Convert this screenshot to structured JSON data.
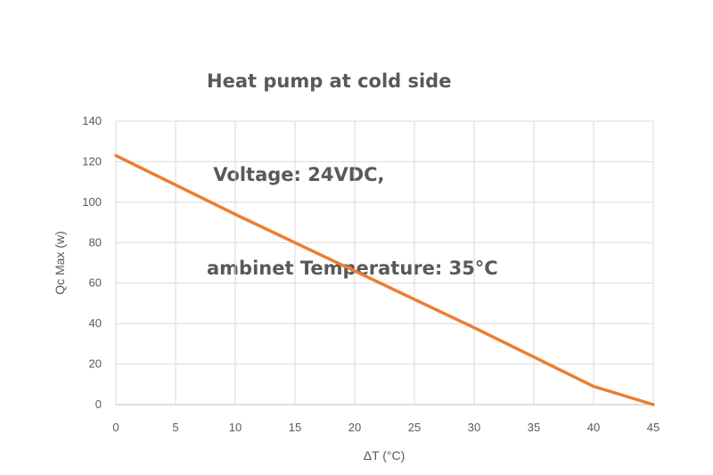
{
  "chart_data": {
    "type": "line",
    "title_lines": [
      "Heat pump at cold side",
      " Voltage: 24VDC,",
      "ambinet Temperature: 35°C"
    ],
    "xlabel": "ΔT (°C)",
    "ylabel": "Qc Max (w)",
    "xlim": [
      0,
      45
    ],
    "ylim": [
      0,
      140
    ],
    "x_ticks": [
      0,
      5,
      10,
      15,
      20,
      25,
      30,
      35,
      40,
      45
    ],
    "y_ticks": [
      0,
      20,
      40,
      60,
      80,
      100,
      120,
      140
    ],
    "grid": true,
    "legend": "none",
    "series": [
      {
        "color": "#ED7D31",
        "x": [
          0,
          5,
          10,
          15,
          20,
          25,
          30,
          35,
          40,
          45
        ],
        "y": [
          123,
          108.5,
          94,
          80,
          66,
          52,
          38,
          23.5,
          9,
          0
        ]
      }
    ]
  }
}
